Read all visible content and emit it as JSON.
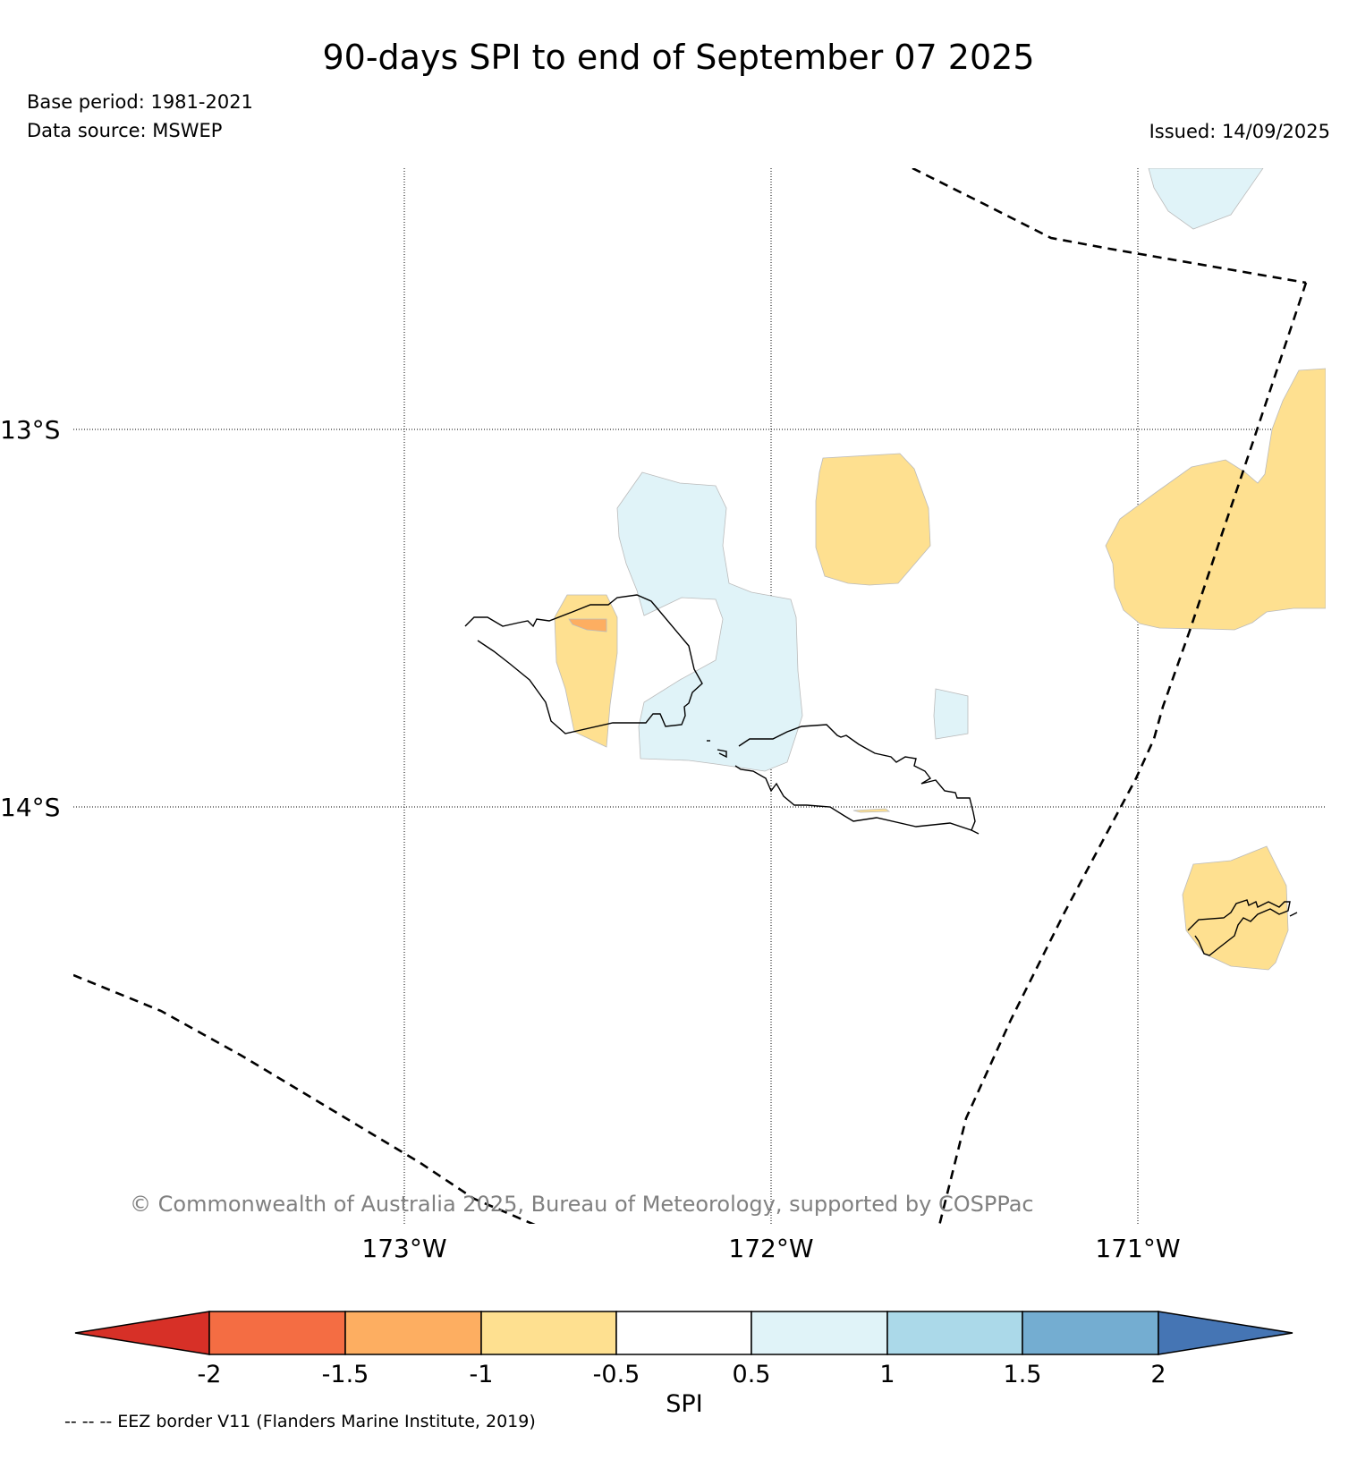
{
  "title": "90-days SPI to end of September 07 2025",
  "base_period": "Base period: 1981-2021",
  "data_source": "Data source: MSWEP",
  "issued": "Issued: 14/09/2025",
  "copyright": "© Commonwealth of Australia 2025, Bureau of Meteorology, supported by COSPPac",
  "latitude_labels": [
    "13°S",
    "14°S"
  ],
  "longitude_labels": [
    "173°W",
    "172°W",
    "171°W"
  ],
  "colorbar": {
    "label": "SPI",
    "ticks": [
      "-2",
      "-1.5",
      "-1",
      "-0.5",
      "0.5",
      "1",
      "1.5",
      "2"
    ],
    "under_color": "#d73027",
    "over_color": "#4575b4",
    "colors": [
      "#f46d43",
      "#fdae61",
      "#fee090",
      "#ffffff",
      "#e0f3f8",
      "#abd9e9",
      "#74add1"
    ]
  },
  "legend_note": "-- -- -- EEZ border V11 (Flanders Marine Institute, 2019)",
  "colors": {
    "dry_moderate": "#fee090",
    "dry_severe": "#fdae61",
    "wet_moderate": "#e0f3f8"
  }
}
